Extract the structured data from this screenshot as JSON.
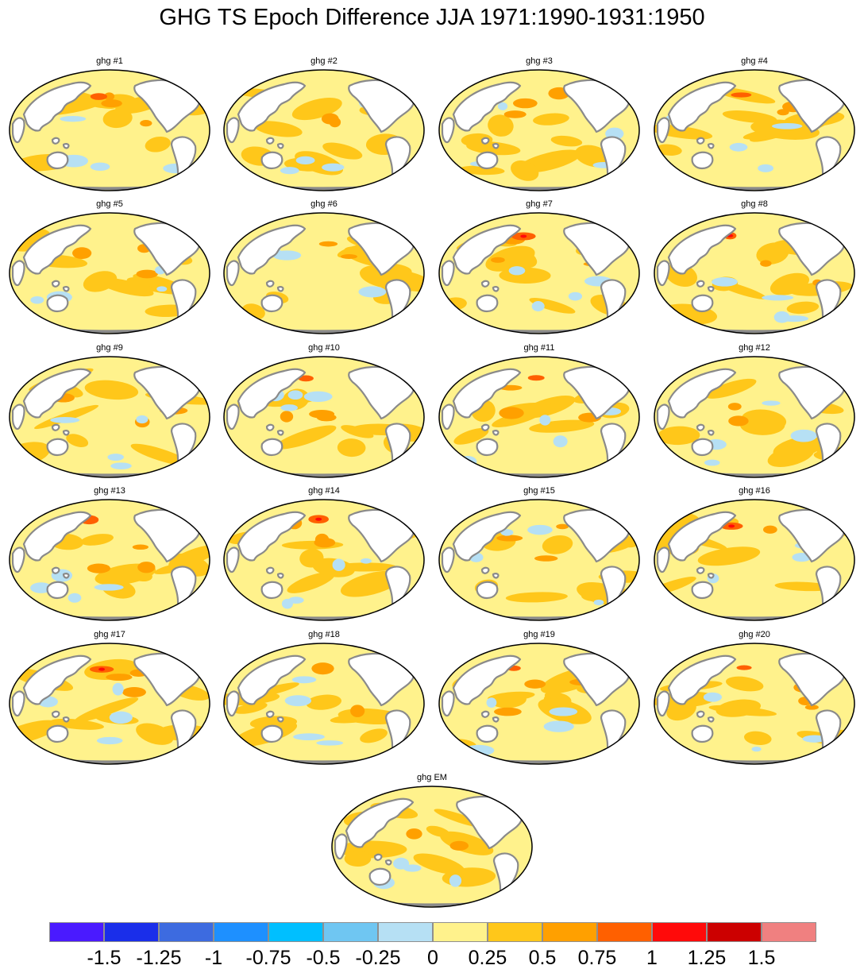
{
  "title": "GHG TS Epoch Difference JJA 1971:1990-1931:1950",
  "panels": [
    {
      "label": "ghg #1"
    },
    {
      "label": "ghg #2"
    },
    {
      "label": "ghg #3"
    },
    {
      "label": "ghg #4"
    },
    {
      "label": "ghg #5"
    },
    {
      "label": "ghg #6"
    },
    {
      "label": "ghg #7"
    },
    {
      "label": "ghg #8"
    },
    {
      "label": "ghg #9"
    },
    {
      "label": "ghg #10"
    },
    {
      "label": "ghg #11"
    },
    {
      "label": "ghg #12"
    },
    {
      "label": "ghg #13"
    },
    {
      "label": "ghg #14"
    },
    {
      "label": "ghg #15"
    },
    {
      "label": "ghg #16"
    },
    {
      "label": "ghg #17"
    },
    {
      "label": "ghg #18"
    },
    {
      "label": "ghg #19"
    },
    {
      "label": "ghg #20"
    },
    {
      "label": "ghg EM"
    }
  ],
  "colorbar": {
    "colors": [
      "#4a1aff",
      "#1a2eea",
      "#3d6be0",
      "#1e90ff",
      "#00bfff",
      "#6fc6f2",
      "#b6e0f4",
      "#fff28c",
      "#ffc71a",
      "#ffa000",
      "#ff6000",
      "#ff0a0a",
      "#cc0000",
      "#f08080"
    ],
    "labels": [
      "-1.5",
      "-1.25",
      "-1",
      "-0.75",
      "-0.5",
      "-0.25",
      "0",
      "0.25",
      "0.5",
      "0.75",
      "1",
      "1.25",
      "1.5"
    ]
  },
  "map_colors": {
    "ocean_base": "#fff28c",
    "warm": "#ffc71a",
    "warmer": "#ffa000",
    "hot": "#ff6000",
    "hottest": "#ff0a0a",
    "cool": "#b6e0f4",
    "cooler": "#6fc6f2",
    "cold": "#1e90ff",
    "land": "#ffffff",
    "coast": "#8a8a8a",
    "border": "#000000"
  }
}
